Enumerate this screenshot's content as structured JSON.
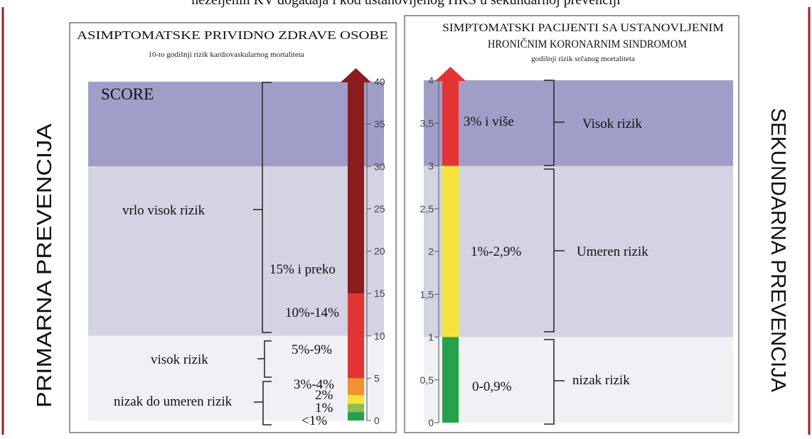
{
  "page": {
    "title": "nezeljenih KV događaja i kod ustanovljenog HKS u sekundarnoj prevenciji"
  },
  "side_labels": {
    "left": "PRIMARNA PREVENCIJA",
    "right": "SEKUNDARNA PREVENCIJA"
  },
  "colors": {
    "frame_red": "#a01e24",
    "band_dark": "#a09ec9",
    "band_medium": "#d3d3e3",
    "band_light": "#f0f0f5",
    "arrow_dark_red": "#8b1c1c",
    "red": "#e33434",
    "orange": "#f0922f",
    "yellow": "#f5e33b",
    "light_green": "#8dbf4a",
    "green": "#26a04a"
  },
  "left_panel": {
    "title": "ASIMPTOMATSKE PRIVIDNO ZDRAVE OSOBE",
    "subtitle": "10-to godišnji rizik kardiovaskularnog mortaliteta",
    "score_label": "SCORE",
    "scale": {
      "min": 0,
      "max": 40,
      "ticks": [
        "0",
        "5",
        "10",
        "15",
        "20",
        "25",
        "30",
        "35",
        "40"
      ]
    },
    "bands": [
      {
        "from": 30,
        "to": 40,
        "tone": "band_dark"
      },
      {
        "from": 10,
        "to": 30,
        "tone": "band_medium"
      },
      {
        "from": 0,
        "to": 10,
        "tone": "band_light"
      }
    ],
    "bar_segments": [
      {
        "from": 0,
        "to": 1,
        "color": "green"
      },
      {
        "from": 1,
        "to": 2,
        "color": "light_green"
      },
      {
        "from": 2,
        "to": 3,
        "color": "yellow"
      },
      {
        "from": 3,
        "to": 5,
        "color": "orange"
      },
      {
        "from": 5,
        "to": 15,
        "color": "red"
      },
      {
        "from": 15,
        "to": 40,
        "color": "arrow_dark_red"
      }
    ],
    "brace_labels": {
      "very_high": "vrlo visok rizik",
      "high": "visok rizik",
      "low_moderate": "nizak do umeren rizik"
    },
    "value_labels": {
      "over_15": "15% i preko",
      "range_10_14": "10%-14%",
      "range_5_9": "5%-9%",
      "range_3_4": "3%-4%",
      "two": "2%",
      "one": "1%",
      "under_one": "<1%"
    }
  },
  "right_panel": {
    "title_line1": "SIMPTOMATSKI PACIJENTI SA USTANOVLJENIM",
    "title_line2": "HRONIČNIM KORONARNIM SINDROMOM",
    "subtitle": "godišnji rizik srčanog mortaliteta",
    "scale": {
      "min": 0,
      "max": 4,
      "ticks": [
        "0",
        "0,5",
        "1",
        "1,5",
        "2",
        "2,5",
        "3",
        "3,5",
        "4"
      ]
    },
    "bands": [
      {
        "from": 3,
        "to": 4,
        "tone": "band_dark"
      },
      {
        "from": 1,
        "to": 3,
        "tone": "band_medium"
      },
      {
        "from": 0,
        "to": 1,
        "tone": "band_light"
      }
    ],
    "bar_segments": [
      {
        "from": 0,
        "to": 1,
        "color": "green"
      },
      {
        "from": 1,
        "to": 3,
        "color": "yellow"
      },
      {
        "from": 3,
        "to": 4,
        "color": "red"
      }
    ],
    "value_labels": {
      "high": "3% i više",
      "moderate": "1%-2,9%",
      "low": "0-0,9%"
    },
    "risk_labels": {
      "high": "Visok rizik",
      "moderate": "Umeren rizik",
      "low": "nizak rizik"
    }
  }
}
